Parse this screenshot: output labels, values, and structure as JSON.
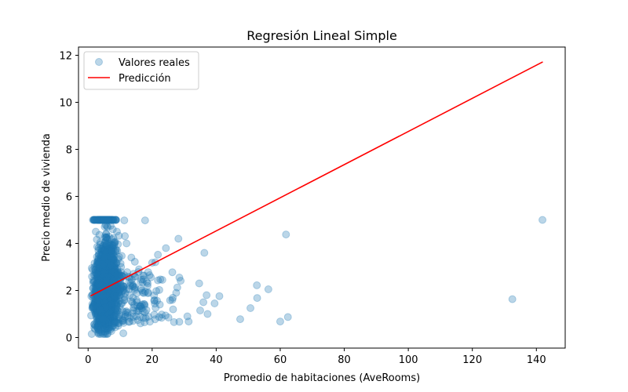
{
  "chart_data": {
    "type": "scatter",
    "title": "Regresión Lineal Simple",
    "xlabel": "Promedio de habitaciones (AveRooms)",
    "ylabel": "Precio medio de vivienda",
    "xlim": [
      -3,
      149
    ],
    "ylim": [
      -0.45,
      12.35
    ],
    "xticks": [
      0,
      20,
      40,
      60,
      80,
      100,
      120,
      140
    ],
    "yticks": [
      0,
      2,
      4,
      6,
      8,
      10,
      12
    ],
    "grid": false,
    "legend": {
      "placement": "top-left"
    },
    "colors": {
      "scatter": "#1f77b4",
      "line": "#ff0000"
    },
    "series": [
      {
        "name": "Valores reales",
        "kind": "scatter",
        "points": [
          [
            141.9,
            5.0
          ],
          [
            132.5,
            1.63
          ],
          [
            62.4,
            0.87
          ],
          [
            61.8,
            4.38
          ],
          [
            60.0,
            0.68
          ],
          [
            56.3,
            2.05
          ],
          [
            52.8,
            1.68
          ],
          [
            52.7,
            2.22
          ],
          [
            50.7,
            1.25
          ],
          [
            47.5,
            0.78
          ],
          [
            41.0,
            1.76
          ],
          [
            39.5,
            1.45
          ],
          [
            37.3,
            1.0
          ],
          [
            37.0,
            1.8
          ],
          [
            36.3,
            3.6
          ],
          [
            36.0,
            1.5
          ],
          [
            35.0,
            1.15
          ],
          [
            34.7,
            2.3
          ],
          [
            31.4,
            0.68
          ],
          [
            31.0,
            0.9
          ],
          [
            28.5,
            2.55
          ],
          [
            28.2,
            4.2
          ],
          [
            27.5,
            1.9
          ],
          [
            26.3,
            1.6
          ],
          [
            25.1,
            0.85
          ],
          [
            24.3,
            3.8
          ],
          [
            23.2,
            2.45
          ],
          [
            22.4,
            1.4
          ],
          [
            21.8,
            3.52
          ],
          [
            21.0,
            3.2
          ],
          [
            20.0,
            3.18
          ],
          [
            19.6,
            2.56
          ],
          [
            18.6,
            2.3
          ],
          [
            17.8,
            4.98
          ],
          [
            17.3,
            0.84
          ],
          [
            16.8,
            2.0
          ],
          [
            15.9,
            2.9
          ],
          [
            14.6,
            3.22
          ],
          [
            14.0,
            1.7
          ],
          [
            13.5,
            3.4
          ],
          [
            12.9,
            2.55
          ],
          [
            12.4,
            0.93
          ],
          [
            12.0,
            4.0
          ],
          [
            11.3,
            4.98
          ],
          [
            11.0,
            0.18
          ],
          [
            10.6,
            2.2
          ],
          [
            10.3,
            3.0
          ],
          [
            9.9,
            1.3
          ],
          [
            9.4,
            0.5
          ],
          [
            9.0,
            4.5
          ],
          [
            1.0,
            1.75
          ],
          [
            1.3,
            1.25
          ],
          [
            1.6,
            2.1
          ],
          [
            1.9,
            0.55
          ],
          [
            2.1,
            3.0
          ],
          [
            2.4,
            4.5
          ],
          [
            2.7,
            2.55
          ],
          [
            2.9,
            1.1
          ],
          [
            3.2,
            5.0
          ],
          [
            3.4,
            0.3
          ]
        ]
      },
      {
        "name": "Predicción",
        "kind": "line",
        "points": [
          [
            0.8,
            1.77
          ],
          [
            142.0,
            11.72
          ]
        ]
      }
    ]
  }
}
